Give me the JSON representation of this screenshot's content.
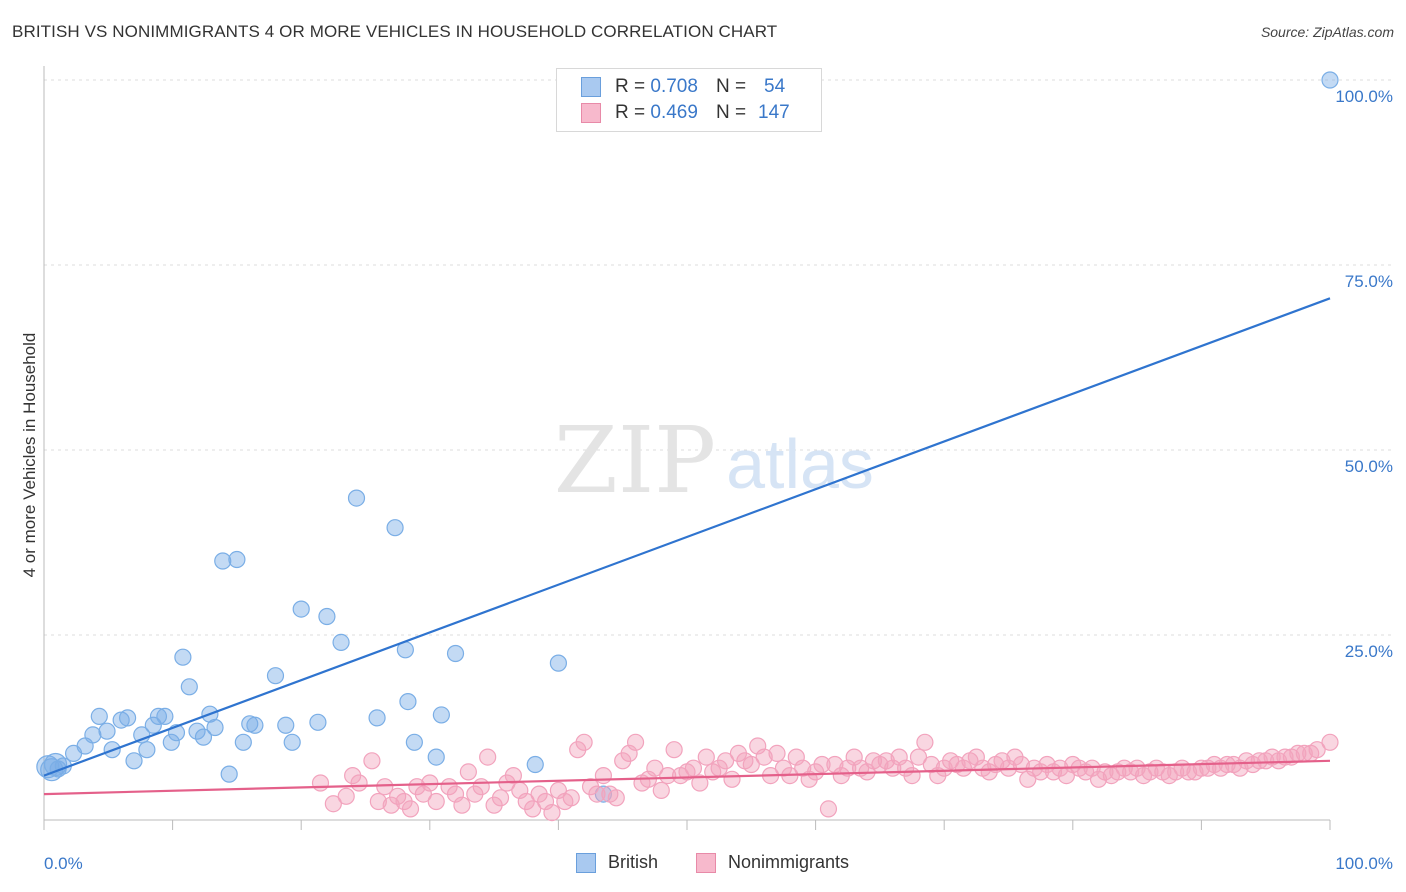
{
  "title": "BRITISH VS NONIMMIGRANTS 4 OR MORE VEHICLES IN HOUSEHOLD CORRELATION CHART",
  "source": "Source: ZipAtlas.com",
  "watermark": {
    "zip": "ZIP",
    "atlas": "atlas"
  },
  "legend": {
    "british": {
      "r_label": "R =",
      "r_value": "0.708",
      "n_label": "N =",
      "n_value": "54",
      "color": "#a9c9f0",
      "border": "#6a9fdc"
    },
    "nonimmigrants": {
      "r_label": "R =",
      "r_value": "0.469",
      "n_label": "N =",
      "n_value": "147",
      "color": "#f7b9cc",
      "border": "#e88aa8"
    }
  },
  "bottom_legend": {
    "british": "British",
    "nonimmigrants": "Nonimmigrants"
  },
  "chart_data": {
    "type": "scatter",
    "ylabel": "4 or more Vehicles in Household",
    "xlabel": "",
    "xlim": [
      0,
      100
    ],
    "ylim": [
      0,
      100
    ],
    "x_tick_labels": [
      "0.0%",
      "100.0%"
    ],
    "y_tick_labels": [
      "25.0%",
      "50.0%",
      "75.0%",
      "100.0%"
    ],
    "y_ticks": [
      25,
      50,
      75,
      100
    ],
    "grid": true,
    "series": [
      {
        "name": "British",
        "color": "#7aaee6",
        "line_color": "#2f74cf",
        "trend": [
          [
            0,
            6.0
          ],
          [
            100,
            70.5
          ]
        ],
        "points": [
          [
            0.3,
            7.2
          ],
          [
            0.6,
            6.8
          ],
          [
            0.9,
            7.5
          ],
          [
            1.1,
            6.9
          ],
          [
            1.5,
            7.3
          ],
          [
            2.3,
            9.0
          ],
          [
            3.2,
            10.0
          ],
          [
            3.8,
            11.5
          ],
          [
            4.3,
            14.0
          ],
          [
            4.9,
            12.0
          ],
          [
            5.3,
            9.5
          ],
          [
            6.0,
            13.5
          ],
          [
            6.5,
            13.8
          ],
          [
            7.0,
            8.0
          ],
          [
            7.6,
            11.5
          ],
          [
            8.0,
            9.5
          ],
          [
            8.5,
            12.8
          ],
          [
            8.9,
            14.0
          ],
          [
            9.4,
            14.0
          ],
          [
            9.9,
            10.5
          ],
          [
            10.3,
            11.8
          ],
          [
            10.8,
            22.0
          ],
          [
            11.3,
            18.0
          ],
          [
            11.9,
            12.0
          ],
          [
            12.4,
            11.2
          ],
          [
            12.9,
            14.3
          ],
          [
            13.3,
            12.5
          ],
          [
            13.9,
            35.0
          ],
          [
            14.4,
            6.2
          ],
          [
            15.0,
            35.2
          ],
          [
            15.5,
            10.5
          ],
          [
            16.0,
            13.0
          ],
          [
            16.4,
            12.8
          ],
          [
            18.0,
            19.5
          ],
          [
            18.8,
            12.8
          ],
          [
            19.3,
            10.5
          ],
          [
            20.0,
            28.5
          ],
          [
            21.3,
            13.2
          ],
          [
            22.0,
            27.5
          ],
          [
            23.1,
            24.0
          ],
          [
            24.3,
            43.5
          ],
          [
            25.9,
            13.8
          ],
          [
            27.3,
            39.5
          ],
          [
            28.1,
            23.0
          ],
          [
            28.3,
            16.0
          ],
          [
            28.8,
            10.5
          ],
          [
            30.5,
            8.5
          ],
          [
            30.9,
            14.2
          ],
          [
            32.0,
            22.5
          ],
          [
            38.2,
            7.5
          ],
          [
            40.0,
            21.2
          ],
          [
            43.5,
            3.5
          ],
          [
            100.0,
            100.0
          ]
        ]
      },
      {
        "name": "Nonimmigrants",
        "color": "#f2a3bd",
        "line_color": "#e4608a",
        "trend": [
          [
            0,
            3.5
          ],
          [
            100,
            8.0
          ]
        ],
        "points": [
          [
            21.5,
            5.0
          ],
          [
            22.5,
            2.2
          ],
          [
            23.5,
            3.2
          ],
          [
            24.0,
            6.0
          ],
          [
            24.5,
            5.0
          ],
          [
            25.5,
            8.0
          ],
          [
            26.0,
            2.5
          ],
          [
            26.5,
            4.5
          ],
          [
            27.0,
            2.0
          ],
          [
            27.5,
            3.2
          ],
          [
            28.0,
            2.5
          ],
          [
            28.5,
            1.5
          ],
          [
            29.0,
            4.5
          ],
          [
            29.5,
            3.5
          ],
          [
            30.0,
            5.0
          ],
          [
            30.5,
            2.5
          ],
          [
            31.5,
            4.5
          ],
          [
            32.0,
            3.5
          ],
          [
            32.5,
            2.0
          ],
          [
            33.0,
            6.5
          ],
          [
            33.5,
            3.5
          ],
          [
            34.0,
            4.5
          ],
          [
            34.5,
            8.5
          ],
          [
            35.0,
            2.0
          ],
          [
            35.5,
            3.0
          ],
          [
            36.0,
            5.0
          ],
          [
            36.5,
            6.0
          ],
          [
            37.0,
            4.0
          ],
          [
            37.5,
            2.5
          ],
          [
            38.0,
            1.5
          ],
          [
            38.5,
            3.5
          ],
          [
            39.0,
            2.5
          ],
          [
            39.5,
            1.0
          ],
          [
            40.0,
            4.0
          ],
          [
            40.5,
            2.5
          ],
          [
            41.0,
            3.0
          ],
          [
            41.5,
            9.5
          ],
          [
            42.0,
            10.5
          ],
          [
            42.5,
            4.5
          ],
          [
            43.0,
            3.5
          ],
          [
            43.5,
            6.0
          ],
          [
            44.0,
            3.5
          ],
          [
            44.5,
            3.0
          ],
          [
            45.0,
            8.0
          ],
          [
            45.5,
            9.0
          ],
          [
            46.0,
            10.5
          ],
          [
            46.5,
            5.0
          ],
          [
            47.0,
            5.5
          ],
          [
            47.5,
            7.0
          ],
          [
            48.0,
            4.0
          ],
          [
            48.5,
            6.0
          ],
          [
            49.0,
            9.5
          ],
          [
            49.5,
            6.0
          ],
          [
            50.0,
            6.5
          ],
          [
            50.5,
            7.0
          ],
          [
            51.0,
            5.0
          ],
          [
            51.5,
            8.5
          ],
          [
            52.0,
            6.5
          ],
          [
            52.5,
            7.0
          ],
          [
            53.0,
            8.0
          ],
          [
            53.5,
            5.5
          ],
          [
            54.0,
            9.0
          ],
          [
            54.5,
            8.0
          ],
          [
            55.0,
            7.5
          ],
          [
            55.5,
            10.0
          ],
          [
            56.0,
            8.5
          ],
          [
            56.5,
            6.0
          ],
          [
            57.0,
            9.0
          ],
          [
            57.5,
            7.0
          ],
          [
            58.0,
            6.0
          ],
          [
            58.5,
            8.5
          ],
          [
            59.0,
            7.0
          ],
          [
            59.5,
            5.5
          ],
          [
            60.0,
            6.5
          ],
          [
            60.5,
            7.5
          ],
          [
            61.0,
            1.5
          ],
          [
            61.5,
            7.5
          ],
          [
            62.0,
            6.0
          ],
          [
            62.5,
            7.0
          ],
          [
            63.0,
            8.5
          ],
          [
            63.5,
            7.0
          ],
          [
            64.0,
            6.5
          ],
          [
            64.5,
            8.0
          ],
          [
            65.0,
            7.5
          ],
          [
            65.5,
            8.0
          ],
          [
            66.0,
            7.0
          ],
          [
            66.5,
            8.5
          ],
          [
            67.0,
            7.0
          ],
          [
            67.5,
            6.0
          ],
          [
            68.0,
            8.5
          ],
          [
            68.5,
            10.5
          ],
          [
            69.0,
            7.5
          ],
          [
            69.5,
            6.0
          ],
          [
            70.0,
            7.0
          ],
          [
            70.5,
            8.0
          ],
          [
            71.0,
            7.5
          ],
          [
            71.5,
            7.0
          ],
          [
            72.0,
            8.0
          ],
          [
            72.5,
            8.5
          ],
          [
            73.0,
            7.0
          ],
          [
            73.5,
            6.5
          ],
          [
            74.0,
            7.5
          ],
          [
            74.5,
            8.0
          ],
          [
            75.0,
            7.0
          ],
          [
            75.5,
            8.5
          ],
          [
            76.0,
            7.5
          ],
          [
            76.5,
            5.5
          ],
          [
            77.0,
            7.0
          ],
          [
            77.5,
            6.5
          ],
          [
            78.0,
            7.5
          ],
          [
            78.5,
            6.5
          ],
          [
            79.0,
            7.0
          ],
          [
            79.5,
            6.0
          ],
          [
            80.0,
            7.5
          ],
          [
            80.5,
            7.0
          ],
          [
            81.0,
            6.5
          ],
          [
            81.5,
            7.0
          ],
          [
            82.0,
            5.5
          ],
          [
            82.5,
            6.5
          ],
          [
            83.0,
            6.0
          ],
          [
            83.5,
            6.5
          ],
          [
            84.0,
            7.0
          ],
          [
            84.5,
            6.5
          ],
          [
            85.0,
            7.0
          ],
          [
            85.5,
            6.0
          ],
          [
            86.0,
            6.5
          ],
          [
            86.5,
            7.0
          ],
          [
            87.0,
            6.5
          ],
          [
            87.5,
            6.0
          ],
          [
            88.0,
            6.5
          ],
          [
            88.5,
            7.0
          ],
          [
            89.0,
            6.5
          ],
          [
            89.5,
            6.5
          ],
          [
            90.0,
            7.0
          ],
          [
            90.5,
            7.0
          ],
          [
            91.0,
            7.5
          ],
          [
            91.5,
            7.0
          ],
          [
            92.0,
            7.5
          ],
          [
            92.5,
            7.5
          ],
          [
            93.0,
            7.0
          ],
          [
            93.5,
            8.0
          ],
          [
            94.0,
            7.5
          ],
          [
            94.5,
            8.0
          ],
          [
            95.0,
            8.0
          ],
          [
            95.5,
            8.5
          ],
          [
            96.0,
            8.0
          ],
          [
            96.5,
            8.5
          ],
          [
            97.0,
            8.5
          ],
          [
            97.5,
            9.0
          ],
          [
            98.0,
            9.0
          ],
          [
            98.5,
            9.0
          ],
          [
            99.0,
            9.5
          ],
          [
            100.0,
            10.5
          ]
        ]
      }
    ]
  }
}
